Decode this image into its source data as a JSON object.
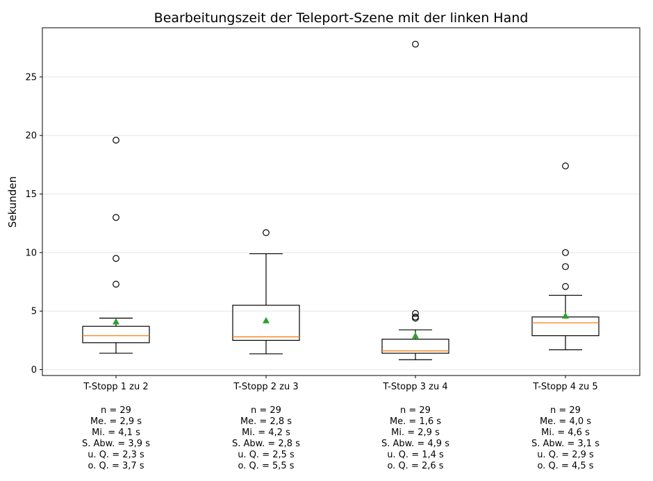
{
  "chart_data": {
    "type": "box",
    "title": "Bearbeitungszeit der Teleport-Szene mit der linken Hand",
    "xlabel": "",
    "ylabel": "Sekunden",
    "ylim": [
      -0.5,
      29.2
    ],
    "yticks": [
      0,
      5,
      10,
      15,
      20,
      25
    ],
    "grid": "horizontal",
    "colors": {
      "box": "#000000",
      "median": "#ff7f0e",
      "mean": "#2ca02c",
      "grid": "#e5e5e5"
    },
    "categories": [
      "T-Stopp 1 zu 2",
      "T-Stopp 2 zu 3",
      "T-Stopp 3 zu 4",
      "T-Stopp 4 zu 5"
    ],
    "boxes": [
      {
        "category": "T-Stopp 1 zu 2",
        "whisker_low": 1.4,
        "q1": 2.3,
        "median": 2.9,
        "q3": 3.7,
        "whisker_high": 4.4,
        "mean": 4.1,
        "outliers": [
          7.3,
          9.5,
          13.0,
          19.6
        ]
      },
      {
        "category": "T-Stopp 2 zu 3",
        "whisker_low": 1.35,
        "q1": 2.5,
        "median": 2.8,
        "q3": 5.5,
        "whisker_high": 9.9,
        "mean": 4.2,
        "outliers": [
          11.7
        ]
      },
      {
        "category": "T-Stopp 3 zu 4",
        "whisker_low": 0.85,
        "q1": 1.4,
        "median": 1.6,
        "q3": 2.6,
        "whisker_high": 3.4,
        "mean": 2.9,
        "outliers": [
          4.4,
          4.5,
          4.8,
          27.8
        ]
      },
      {
        "category": "T-Stopp 4 zu 5",
        "whisker_low": 1.7,
        "q1": 2.9,
        "median": 4.0,
        "q3": 4.5,
        "whisker_high": 6.35,
        "mean": 4.6,
        "outliers": [
          7.1,
          8.8,
          10.0,
          17.4
        ]
      }
    ],
    "stat_labels": [
      [
        "n = 29",
        "Me. = 2,9 s",
        "Mi. = 4,1 s",
        "S. Abw. = 3,9 s",
        "u. Q. = 2,3 s",
        "o. Q. = 3,7 s"
      ],
      [
        "n = 29",
        "Me. = 2,8 s",
        "Mi. = 4,2 s",
        "S. Abw. = 2,8 s",
        "u. Q. = 2,5 s",
        "o. Q. = 5,5 s"
      ],
      [
        "n = 29",
        "Me. = 1,6 s",
        "Mi. = 2,9 s",
        "S. Abw. = 4,9 s",
        "u. Q. = 1,4 s",
        "o. Q. = 2,6 s"
      ],
      [
        "n = 29",
        "Me. = 4,0 s",
        "Mi. = 4,6 s",
        "S. Abw. = 3,1 s",
        "u. Q. = 2,9 s",
        "o. Q. = 4,5 s"
      ]
    ]
  }
}
